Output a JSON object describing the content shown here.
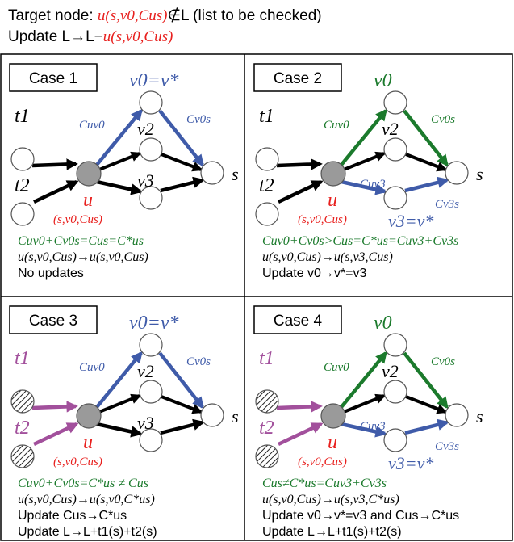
{
  "header": {
    "line1_prefix": "Target node: ",
    "line1_node": "u(s,v0,Cus)",
    "line1_notin": "∉L (list to be checked)",
    "line2_prefix": "Update L→L−",
    "line2_node": "u(s,v0,Cus)"
  },
  "colors": {
    "black": "#000000",
    "blue": "#3f5ba9",
    "green": "#1b7a2c",
    "red": "#e8201e",
    "purple": "#a2509c",
    "node_gray": "#9a9a9a"
  },
  "cases": [
    {
      "id": "case1",
      "title": "Case 1",
      "t_hatched": false,
      "t_arrow_color": "black",
      "upper_edges": "blue",
      "lower_edges": "black",
      "top_label": "v0=v*",
      "bottom_label": "v3",
      "cuv3": false,
      "cond1": {
        "text": "Cuv0+Cv0s=Cus=C*us",
        "color": "green"
      },
      "cond2": "u(s,v0,Cus)→u(s,v0,Cus)",
      "cond3": "No updates",
      "cond4": ""
    },
    {
      "id": "case2",
      "title": "Case 2",
      "t_hatched": false,
      "t_arrow_color": "black",
      "upper_edges": "green",
      "lower_edges": "blue",
      "top_label": "v0",
      "bottom_label": "v3=v*",
      "cuv3": true,
      "cond1": {
        "text": "Cuv0+Cv0s>Cus=C*us=Cuv3+Cv3s",
        "color": "green"
      },
      "cond2": "u(s,v0,Cus)→u(s,v3,Cus)",
      "cond3": "Update v0→v*=v3",
      "cond4": ""
    },
    {
      "id": "case3",
      "title": "Case 3",
      "t_hatched": true,
      "t_arrow_color": "purple",
      "upper_edges": "blue",
      "lower_edges": "black",
      "top_label": "v0=v*",
      "bottom_label": "v3",
      "cuv3": false,
      "cond1": {
        "text": "Cuv0+Cv0s=C*us ≠ Cus",
        "color": "green"
      },
      "cond2": "u(s,v0,Cus)→u(s,v0,C*us)",
      "cond3": "Update Cus→C*us",
      "cond4": "Update L→L+t1(s)+t2(s)"
    },
    {
      "id": "case4",
      "title": "Case 4",
      "t_hatched": true,
      "t_arrow_color": "purple",
      "upper_edges": "green",
      "lower_edges": "blue",
      "top_label": "v0",
      "bottom_label": "v3=v*",
      "cuv3": true,
      "cond1": {
        "text": "Cus≠C*us=Cuv3+Cv3s",
        "color": "green"
      },
      "cond2": "u(s,v0,Cus)→u(s,v3,C*us)",
      "cond3": "Update v0→v*=v3 and Cus→C*us",
      "cond4": "Update L→L+t1(s)+t2(s)"
    }
  ],
  "labels": {
    "t1": "t1",
    "t2": "t2",
    "u": "u",
    "u_params": "(s,v0,Cus)",
    "v2": "v2",
    "s": "s",
    "cuv0": "Cuv0",
    "cv0s": "Cv0s",
    "cuv3": "Cuv3",
    "cv3s": "Cv3s"
  }
}
